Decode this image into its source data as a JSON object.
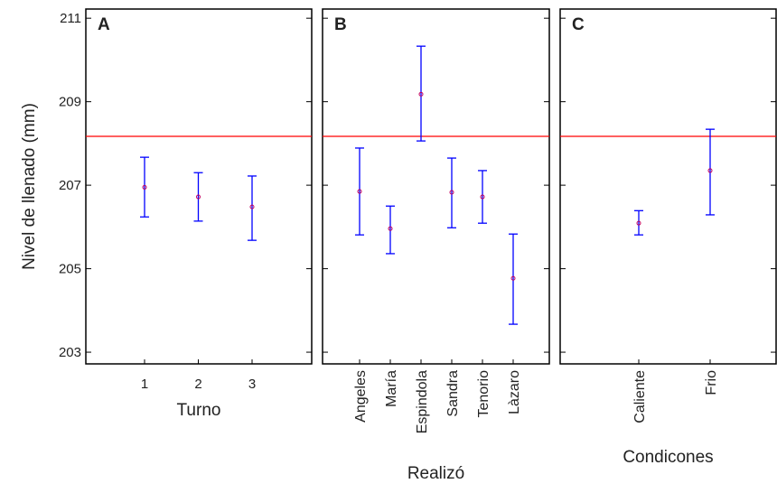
{
  "chart_data": [
    {
      "type": "errorbar",
      "title": "A",
      "ylabel": "Nivel de llenado (mm)",
      "xlabel": "Turno",
      "categories": [
        "1",
        "2",
        "3"
      ],
      "values": [
        206.95,
        206.72,
        206.48
      ],
      "lower": [
        206.24,
        206.14,
        205.68
      ],
      "upper": [
        207.67,
        207.3,
        207.22
      ],
      "color": "#0000ff",
      "mean_color": "#c00060",
      "ylim": [
        202.72,
        211.22
      ],
      "yticks": [
        203,
        205,
        207,
        209,
        211
      ],
      "ytick_labels": true,
      "hline": 208.17,
      "hline_color": "#ff0000",
      "rotate_xticks": false
    },
    {
      "type": "errorbar",
      "title": "B",
      "xlabel": "Realizó",
      "categories": [
        "Angeles",
        "María",
        "Espindola",
        "Sandra",
        "Tenorio",
        "Làzaro"
      ],
      "values": [
        206.85,
        205.96,
        209.18,
        206.83,
        206.72,
        204.77
      ],
      "lower": [
        205.81,
        205.36,
        208.06,
        205.98,
        206.09,
        203.67
      ],
      "upper": [
        207.89,
        206.5,
        210.33,
        207.65,
        207.35,
        205.83
      ],
      "color": "#0000ff",
      "mean_color": "#c00060",
      "ylim": [
        202.72,
        211.22
      ],
      "yticks": [
        203,
        205,
        207,
        209,
        211
      ],
      "ytick_labels": false,
      "hline": 208.17,
      "hline_color": "#ff0000",
      "rotate_xticks": true
    },
    {
      "type": "errorbar",
      "title": "C",
      "xlabel": "Condicones",
      "categories": [
        "Caliente",
        "Frio"
      ],
      "values": [
        206.09,
        207.35
      ],
      "lower": [
        205.81,
        206.29
      ],
      "upper": [
        206.39,
        208.34
      ],
      "color": "#0000ff",
      "mean_color": "#c00060",
      "ylim": [
        202.72,
        211.22
      ],
      "yticks": [
        203,
        205,
        207,
        209,
        211
      ],
      "ytick_labels": false,
      "hline": 208.17,
      "hline_color": "#ff0000",
      "rotate_xticks": true
    }
  ]
}
